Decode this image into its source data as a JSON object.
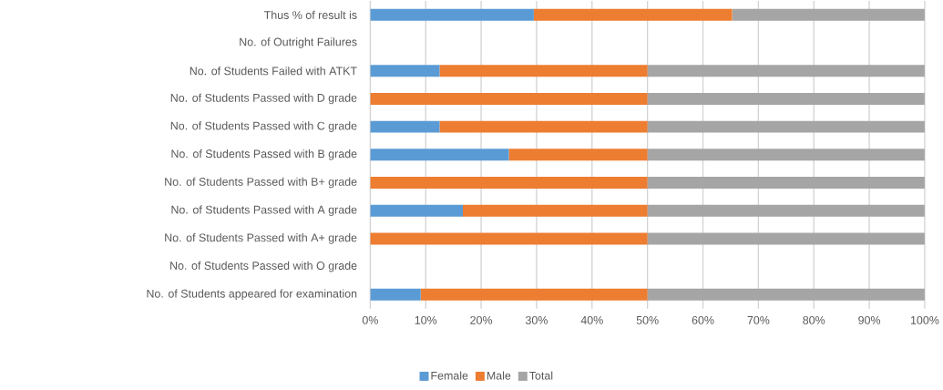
{
  "chart_data": {
    "type": "bar",
    "orientation": "horizontal",
    "stacked": true,
    "categories": [
      "Thus % of result is",
      "No. of Outright Failures",
      "No. of Students Failed with ATKT",
      "No. of Students Passed with D grade",
      "No. of Students Passed with C grade",
      "No. of Students Passed with B grade",
      "No. of Students Passed with B+ grade",
      "No. of Students Passed with A grade",
      "No. of Students Passed with A+ grade",
      "No. of Students Passed with  O grade",
      "No. of Students appeared for examination"
    ],
    "series": [
      {
        "name": "Female",
        "color": "#5b9bd5",
        "values": [
          29.5,
          0,
          12.5,
          0,
          12.5,
          25,
          0,
          16.7,
          0,
          0,
          9.1
        ]
      },
      {
        "name": "Male",
        "color": "#ed7d31",
        "values": [
          35.8,
          0,
          37.5,
          50,
          37.5,
          25,
          50,
          33.3,
          50,
          0,
          40.9
        ]
      },
      {
        "name": "Total",
        "color": "#a5a5a5",
        "values": [
          34.7,
          0,
          50,
          50,
          50,
          50,
          50,
          50,
          50,
          0,
          50
        ]
      }
    ],
    "xlim": [
      0,
      100
    ],
    "xticks": [
      {
        "value": 0,
        "label": "0%"
      },
      {
        "value": 10,
        "label": "10%"
      },
      {
        "value": 20,
        "label": "20%"
      },
      {
        "value": 30,
        "label": "30%"
      },
      {
        "value": 40,
        "label": "40%"
      },
      {
        "value": 50,
        "label": "50%"
      },
      {
        "value": 60,
        "label": "60%"
      },
      {
        "value": 70,
        "label": "70%"
      },
      {
        "value": 80,
        "label": "80%"
      },
      {
        "value": 90,
        "label": "90%"
      },
      {
        "value": 100,
        "label": "100%"
      }
    ],
    "grid": "x",
    "legend": "bottom"
  }
}
